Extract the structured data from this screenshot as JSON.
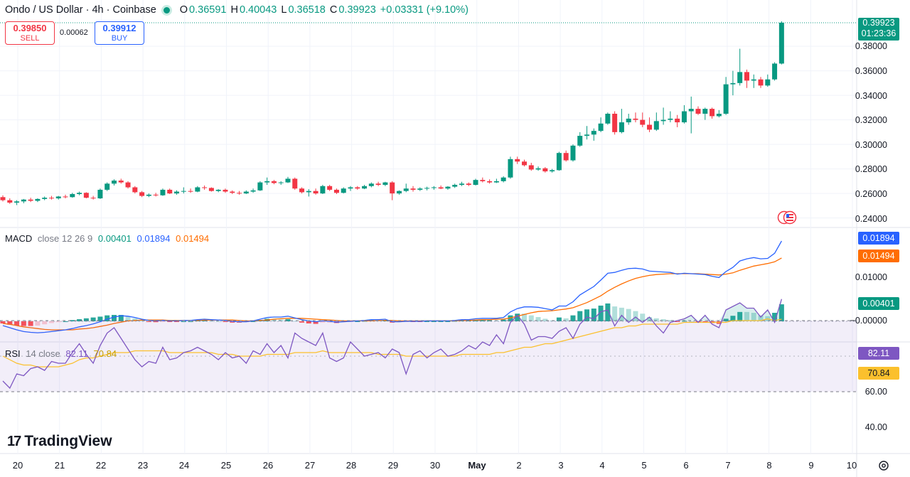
{
  "header": {
    "symbol": "Ondo / US Dollar · 4h · Coinbase",
    "open_label": "O",
    "open": "0.36591",
    "high_label": "H",
    "high": "0.40043",
    "low_label": "L",
    "low": "0.36518",
    "close_label": "C",
    "close": "0.39923",
    "change": "+0.03331 (+9.10%)"
  },
  "trade": {
    "sell_price": "0.39850",
    "sell_label": "SELL",
    "spread": "0.00062",
    "buy_price": "0.39912",
    "buy_label": "BUY"
  },
  "price_tag": {
    "price": "0.39923",
    "countdown": "01:23:36"
  },
  "macd_legend": {
    "name": "MACD",
    "params": "close 12 26 9",
    "hist": "0.00401",
    "macd": "0.01894",
    "signal": "0.01494"
  },
  "rsi_legend": {
    "name": "RSI",
    "params": "14 close",
    "rsi": "82.11",
    "ma": "70.84"
  },
  "brand": "TradingView",
  "colors": {
    "up": "#089981",
    "down": "#f23645",
    "macd": "#2962ff",
    "signal": "#ff6d00",
    "rsi": "#7e57c2",
    "rsi_ma": "#fbc02d"
  },
  "axes": {
    "price_ticks": [
      "0.38000",
      "0.36000",
      "0.34000",
      "0.32000",
      "0.30000",
      "0.28000",
      "0.26000",
      "0.24000"
    ],
    "macd_ticks": [
      "0.01000",
      "0.00000"
    ],
    "macd_zero_label": "−0.00000",
    "rsi_ticks": [
      "60.00",
      "40.00"
    ],
    "x_labels": [
      "20",
      "21",
      "22",
      "23",
      "24",
      "25",
      "26",
      "27",
      "28",
      "29",
      "30",
      "May",
      "2",
      "3",
      "4",
      "5",
      "6",
      "7",
      "8",
      "9",
      "10"
    ]
  },
  "chart_data": {
    "type": "candlestick",
    "timeframe": "4h",
    "price_range": [
      0.235,
      0.405
    ],
    "last_close": 0.39923,
    "candles": [
      [
        0.257,
        0.2585,
        0.2535,
        0.2545
      ],
      [
        0.2545,
        0.256,
        0.2515,
        0.2525
      ],
      [
        0.2525,
        0.2545,
        0.2505,
        0.2535
      ],
      [
        0.2535,
        0.2555,
        0.252,
        0.255
      ],
      [
        0.255,
        0.2565,
        0.253,
        0.254
      ],
      [
        0.254,
        0.256,
        0.253,
        0.2555
      ],
      [
        0.2555,
        0.2575,
        0.2545,
        0.2565
      ],
      [
        0.2565,
        0.258,
        0.255,
        0.256
      ],
      [
        0.256,
        0.258,
        0.255,
        0.2575
      ],
      [
        0.2575,
        0.259,
        0.256,
        0.257
      ],
      [
        0.257,
        0.2605,
        0.2565,
        0.2595
      ],
      [
        0.2595,
        0.2615,
        0.2585,
        0.2605
      ],
      [
        0.2605,
        0.261,
        0.256,
        0.2565
      ],
      [
        0.2565,
        0.258,
        0.255,
        0.256
      ],
      [
        0.256,
        0.264,
        0.2555,
        0.263
      ],
      [
        0.263,
        0.269,
        0.262,
        0.268
      ],
      [
        0.268,
        0.2715,
        0.2665,
        0.2705
      ],
      [
        0.2705,
        0.272,
        0.268,
        0.269
      ],
      [
        0.269,
        0.27,
        0.264,
        0.265
      ],
      [
        0.265,
        0.266,
        0.26,
        0.261
      ],
      [
        0.261,
        0.262,
        0.257,
        0.258
      ],
      [
        0.258,
        0.26,
        0.257,
        0.259
      ],
      [
        0.259,
        0.2605,
        0.2575,
        0.2585
      ],
      [
        0.2585,
        0.264,
        0.258,
        0.263
      ],
      [
        0.263,
        0.264,
        0.2595,
        0.26
      ],
      [
        0.26,
        0.2625,
        0.259,
        0.2615
      ],
      [
        0.2615,
        0.265,
        0.26,
        0.262
      ],
      [
        0.262,
        0.264,
        0.2605,
        0.2615
      ],
      [
        0.2615,
        0.266,
        0.261,
        0.265
      ],
      [
        0.265,
        0.2665,
        0.263,
        0.2645
      ],
      [
        0.2645,
        0.265,
        0.2615,
        0.262
      ],
      [
        0.262,
        0.2635,
        0.261,
        0.263
      ],
      [
        0.263,
        0.264,
        0.2605,
        0.2615
      ],
      [
        0.2615,
        0.2625,
        0.2595,
        0.2605
      ],
      [
        0.2605,
        0.262,
        0.259,
        0.26
      ],
      [
        0.26,
        0.2625,
        0.2595,
        0.2615
      ],
      [
        0.2615,
        0.264,
        0.2605,
        0.2625
      ],
      [
        0.2625,
        0.27,
        0.262,
        0.269
      ],
      [
        0.269,
        0.273,
        0.267,
        0.27
      ],
      [
        0.27,
        0.271,
        0.2675,
        0.2685
      ],
      [
        0.2685,
        0.27,
        0.267,
        0.269
      ],
      [
        0.269,
        0.2735,
        0.2685,
        0.272
      ],
      [
        0.272,
        0.273,
        0.263,
        0.264
      ],
      [
        0.264,
        0.265,
        0.26,
        0.261
      ],
      [
        0.261,
        0.2635,
        0.2575,
        0.262
      ],
      [
        0.262,
        0.264,
        0.259,
        0.26
      ],
      [
        0.26,
        0.267,
        0.2595,
        0.266
      ],
      [
        0.266,
        0.267,
        0.262,
        0.263
      ],
      [
        0.263,
        0.264,
        0.2595,
        0.2605
      ],
      [
        0.2605,
        0.265,
        0.26,
        0.264
      ],
      [
        0.264,
        0.266,
        0.262,
        0.265
      ],
      [
        0.265,
        0.266,
        0.263,
        0.264
      ],
      [
        0.264,
        0.267,
        0.2635,
        0.266
      ],
      [
        0.266,
        0.269,
        0.265,
        0.268
      ],
      [
        0.268,
        0.2695,
        0.266,
        0.267
      ],
      [
        0.267,
        0.2695,
        0.266,
        0.269
      ],
      [
        0.269,
        0.27,
        0.2545,
        0.26
      ],
      [
        0.26,
        0.2625,
        0.259,
        0.262
      ],
      [
        0.262,
        0.268,
        0.261,
        0.264
      ],
      [
        0.264,
        0.266,
        0.2615,
        0.263
      ],
      [
        0.263,
        0.265,
        0.262,
        0.264
      ],
      [
        0.264,
        0.2655,
        0.2625,
        0.2645
      ],
      [
        0.2645,
        0.266,
        0.263,
        0.265
      ],
      [
        0.265,
        0.2665,
        0.2635,
        0.264
      ],
      [
        0.264,
        0.266,
        0.263,
        0.2655
      ],
      [
        0.2655,
        0.268,
        0.2645,
        0.267
      ],
      [
        0.267,
        0.2695,
        0.266,
        0.268
      ],
      [
        0.268,
        0.269,
        0.266,
        0.267
      ],
      [
        0.267,
        0.272,
        0.2665,
        0.271
      ],
      [
        0.271,
        0.273,
        0.269,
        0.27
      ],
      [
        0.27,
        0.2715,
        0.268,
        0.269
      ],
      [
        0.269,
        0.272,
        0.2685,
        0.27
      ],
      [
        0.27,
        0.274,
        0.269,
        0.273
      ],
      [
        0.273,
        0.29,
        0.272,
        0.288
      ],
      [
        0.288,
        0.29,
        0.284,
        0.286
      ],
      [
        0.286,
        0.2875,
        0.282,
        0.283
      ],
      [
        0.283,
        0.285,
        0.2785,
        0.2795
      ],
      [
        0.2795,
        0.282,
        0.2785,
        0.2805
      ],
      [
        0.2805,
        0.2815,
        0.277,
        0.278
      ],
      [
        0.278,
        0.28,
        0.277,
        0.279
      ],
      [
        0.279,
        0.294,
        0.2785,
        0.293
      ],
      [
        0.293,
        0.295,
        0.286,
        0.287
      ],
      [
        0.287,
        0.3,
        0.286,
        0.299
      ],
      [
        0.299,
        0.31,
        0.298,
        0.307
      ],
      [
        0.307,
        0.315,
        0.304,
        0.308
      ],
      [
        0.308,
        0.313,
        0.303,
        0.311
      ],
      [
        0.311,
        0.322,
        0.31,
        0.317
      ],
      [
        0.317,
        0.326,
        0.316,
        0.325
      ],
      [
        0.325,
        0.327,
        0.308,
        0.31
      ],
      [
        0.31,
        0.329,
        0.309,
        0.318
      ],
      [
        0.318,
        0.325,
        0.316,
        0.321
      ],
      [
        0.321,
        0.326,
        0.318,
        0.32
      ],
      [
        0.32,
        0.326,
        0.314,
        0.316
      ],
      [
        0.316,
        0.322,
        0.31,
        0.312
      ],
      [
        0.312,
        0.326,
        0.311,
        0.319
      ],
      [
        0.319,
        0.33,
        0.316,
        0.32
      ],
      [
        0.32,
        0.327,
        0.318,
        0.321
      ],
      [
        0.321,
        0.324,
        0.314,
        0.318
      ],
      [
        0.318,
        0.332,
        0.317,
        0.327
      ],
      [
        0.327,
        0.339,
        0.309,
        0.329
      ],
      [
        0.329,
        0.331,
        0.324,
        0.325
      ],
      [
        0.325,
        0.33,
        0.32,
        0.329
      ],
      [
        0.329,
        0.33,
        0.321,
        0.323
      ],
      [
        0.323,
        0.328,
        0.322,
        0.325
      ],
      [
        0.325,
        0.355,
        0.324,
        0.349
      ],
      [
        0.349,
        0.36,
        0.34,
        0.35
      ],
      [
        0.35,
        0.378,
        0.348,
        0.359
      ],
      [
        0.359,
        0.361,
        0.346,
        0.352
      ],
      [
        0.352,
        0.357,
        0.346,
        0.353
      ],
      [
        0.353,
        0.355,
        0.346,
        0.348
      ],
      [
        0.348,
        0.357,
        0.347,
        0.353
      ],
      [
        0.353,
        0.367,
        0.352,
        0.3659
      ],
      [
        0.3659,
        0.4004,
        0.3652,
        0.3992
      ]
    ],
    "macd": {
      "line": [
        -0.001,
        -0.0015,
        -0.002,
        -0.0024,
        -0.0026,
        -0.0027,
        -0.0026,
        -0.0024,
        -0.0022,
        -0.002,
        -0.0017,
        -0.0013,
        -0.001,
        -0.0006,
        -0.0001,
        0.0005,
        0.001,
        0.0013,
        0.0012,
        0.0009,
        0.0005,
        0.0002,
        0.0001,
        0.0002,
        0.0001,
        0.0001,
        0.0002,
        0.0002,
        0.0004,
        0.0005,
        0.0004,
        0.0003,
        0.0002,
        0.0,
        -0.0001,
        -0.0001,
        0.0001,
        0.0005,
        0.0009,
        0.001,
        0.001,
        0.0012,
        0.0008,
        0.0004,
        0.0001,
        -0.0001,
        0.0001,
        0.0,
        -0.0002,
        -0.0001,
        0.0,
        0.0001,
        0.0002,
        0.0004,
        0.0004,
        0.0005,
        -0.0001,
        -0.0001,
        0.0,
        0.0,
        0.0,
        0.0001,
        0.0001,
        0.0001,
        0.0001,
        0.0002,
        0.0004,
        0.0004,
        0.0006,
        0.0007,
        0.0007,
        0.0007,
        0.0009,
        0.0022,
        0.003,
        0.0034,
        0.0034,
        0.0033,
        0.003,
        0.0027,
        0.0036,
        0.0036,
        0.0046,
        0.0062,
        0.0072,
        0.0082,
        0.0097,
        0.0113,
        0.0115,
        0.012,
        0.0124,
        0.0125,
        0.0123,
        0.0118,
        0.0117,
        0.0116,
        0.0115,
        0.0111,
        0.0113,
        0.0112,
        0.0111,
        0.011,
        0.0106,
        0.0103,
        0.0117,
        0.0127,
        0.0142,
        0.0147,
        0.015,
        0.0147,
        0.0148,
        0.016,
        0.0189
      ],
      "signal": [
        -0.0005,
        -0.0007,
        -0.001,
        -0.0013,
        -0.0015,
        -0.0017,
        -0.0019,
        -0.002,
        -0.002,
        -0.002,
        -0.002,
        -0.0018,
        -0.0017,
        -0.0015,
        -0.0012,
        -0.0009,
        -0.0005,
        -0.0002,
        0.0001,
        0.0002,
        0.0003,
        0.0003,
        0.0003,
        0.0003,
        0.0002,
        0.0002,
        0.0002,
        0.0002,
        0.0002,
        0.0003,
        0.0003,
        0.0003,
        0.0003,
        0.0003,
        0.0002,
        0.0001,
        0.0001,
        0.0002,
        0.0003,
        0.0005,
        0.0006,
        0.0007,
        0.0007,
        0.0007,
        0.0006,
        0.0005,
        0.0004,
        0.0003,
        0.0002,
        0.0001,
        0.0001,
        0.0001,
        0.0001,
        0.0001,
        0.0002,
        0.0002,
        0.0002,
        0.0001,
        0.0001,
        0.0001,
        0.0001,
        0.0001,
        0.0001,
        0.0001,
        0.0001,
        0.0001,
        0.0002,
        0.0002,
        0.0003,
        0.0004,
        0.0004,
        0.0005,
        0.0005,
        0.0008,
        0.0012,
        0.0016,
        0.002,
        0.0023,
        0.0024,
        0.0025,
        0.0027,
        0.0029,
        0.0032,
        0.0038,
        0.0044,
        0.0052,
        0.006,
        0.0071,
        0.008,
        0.0088,
        0.0095,
        0.0101,
        0.0105,
        0.0108,
        0.011,
        0.0111,
        0.0112,
        0.0112,
        0.0112,
        0.0112,
        0.0112,
        0.0111,
        0.011,
        0.0109,
        0.0111,
        0.0114,
        0.012,
        0.0125,
        0.013,
        0.0133,
        0.0136,
        0.014,
        0.0149
      ]
    },
    "rsi": {
      "values": [
        36,
        32,
        40,
        39,
        43,
        44,
        42,
        47,
        46,
        46,
        52,
        57,
        51,
        46,
        56,
        63,
        66,
        60,
        54,
        48,
        44,
        47,
        46,
        55,
        48,
        49,
        52,
        53,
        55,
        53,
        51,
        48,
        52,
        49,
        50,
        46,
        53,
        51,
        57,
        52,
        56,
        49,
        63,
        60,
        58,
        56,
        63,
        49,
        47,
        49,
        58,
        54,
        50,
        51,
        52,
        49,
        54,
        52,
        40,
        51,
        53,
        49,
        52,
        54,
        50,
        51,
        53,
        56,
        54,
        58,
        56,
        62,
        57,
        69,
        73,
        68,
        59,
        61,
        61,
        60,
        64,
        66,
        60,
        68,
        72,
        71,
        75,
        76,
        67,
        73,
        69,
        72,
        69,
        72,
        67,
        63,
        69,
        70,
        71,
        73,
        69,
        73,
        68,
        66,
        76,
        78,
        80,
        77,
        77,
        72,
        76,
        69,
        82.11
      ],
      "ma": [
        50,
        48,
        46,
        45,
        45,
        44,
        44,
        44,
        44,
        45,
        46,
        48,
        49,
        49,
        50,
        51,
        52,
        52,
        52,
        53,
        53,
        53,
        53,
        53,
        52,
        52,
        52,
        52,
        52,
        52,
        52,
        51,
        51,
        51,
        50,
        50,
        50,
        50,
        51,
        51,
        51,
        51,
        52,
        52,
        52,
        52,
        53,
        52,
        52,
        52,
        52,
        52,
        52,
        52,
        51,
        51,
        51,
        51,
        50,
        50,
        50,
        50,
        50,
        50,
        50,
        50,
        51,
        51,
        51,
        51,
        51,
        52,
        52,
        53,
        54,
        55,
        55,
        56,
        57,
        57,
        58,
        59,
        60,
        61,
        62,
        63,
        64,
        65,
        66,
        66,
        67,
        67,
        68,
        68,
        68,
        68,
        68,
        68,
        69,
        69,
        69,
        69,
        69,
        69,
        69,
        70,
        70,
        70,
        70,
        70,
        71,
        70,
        70.84
      ],
      "overbought": 70,
      "oversold": 30
    }
  }
}
